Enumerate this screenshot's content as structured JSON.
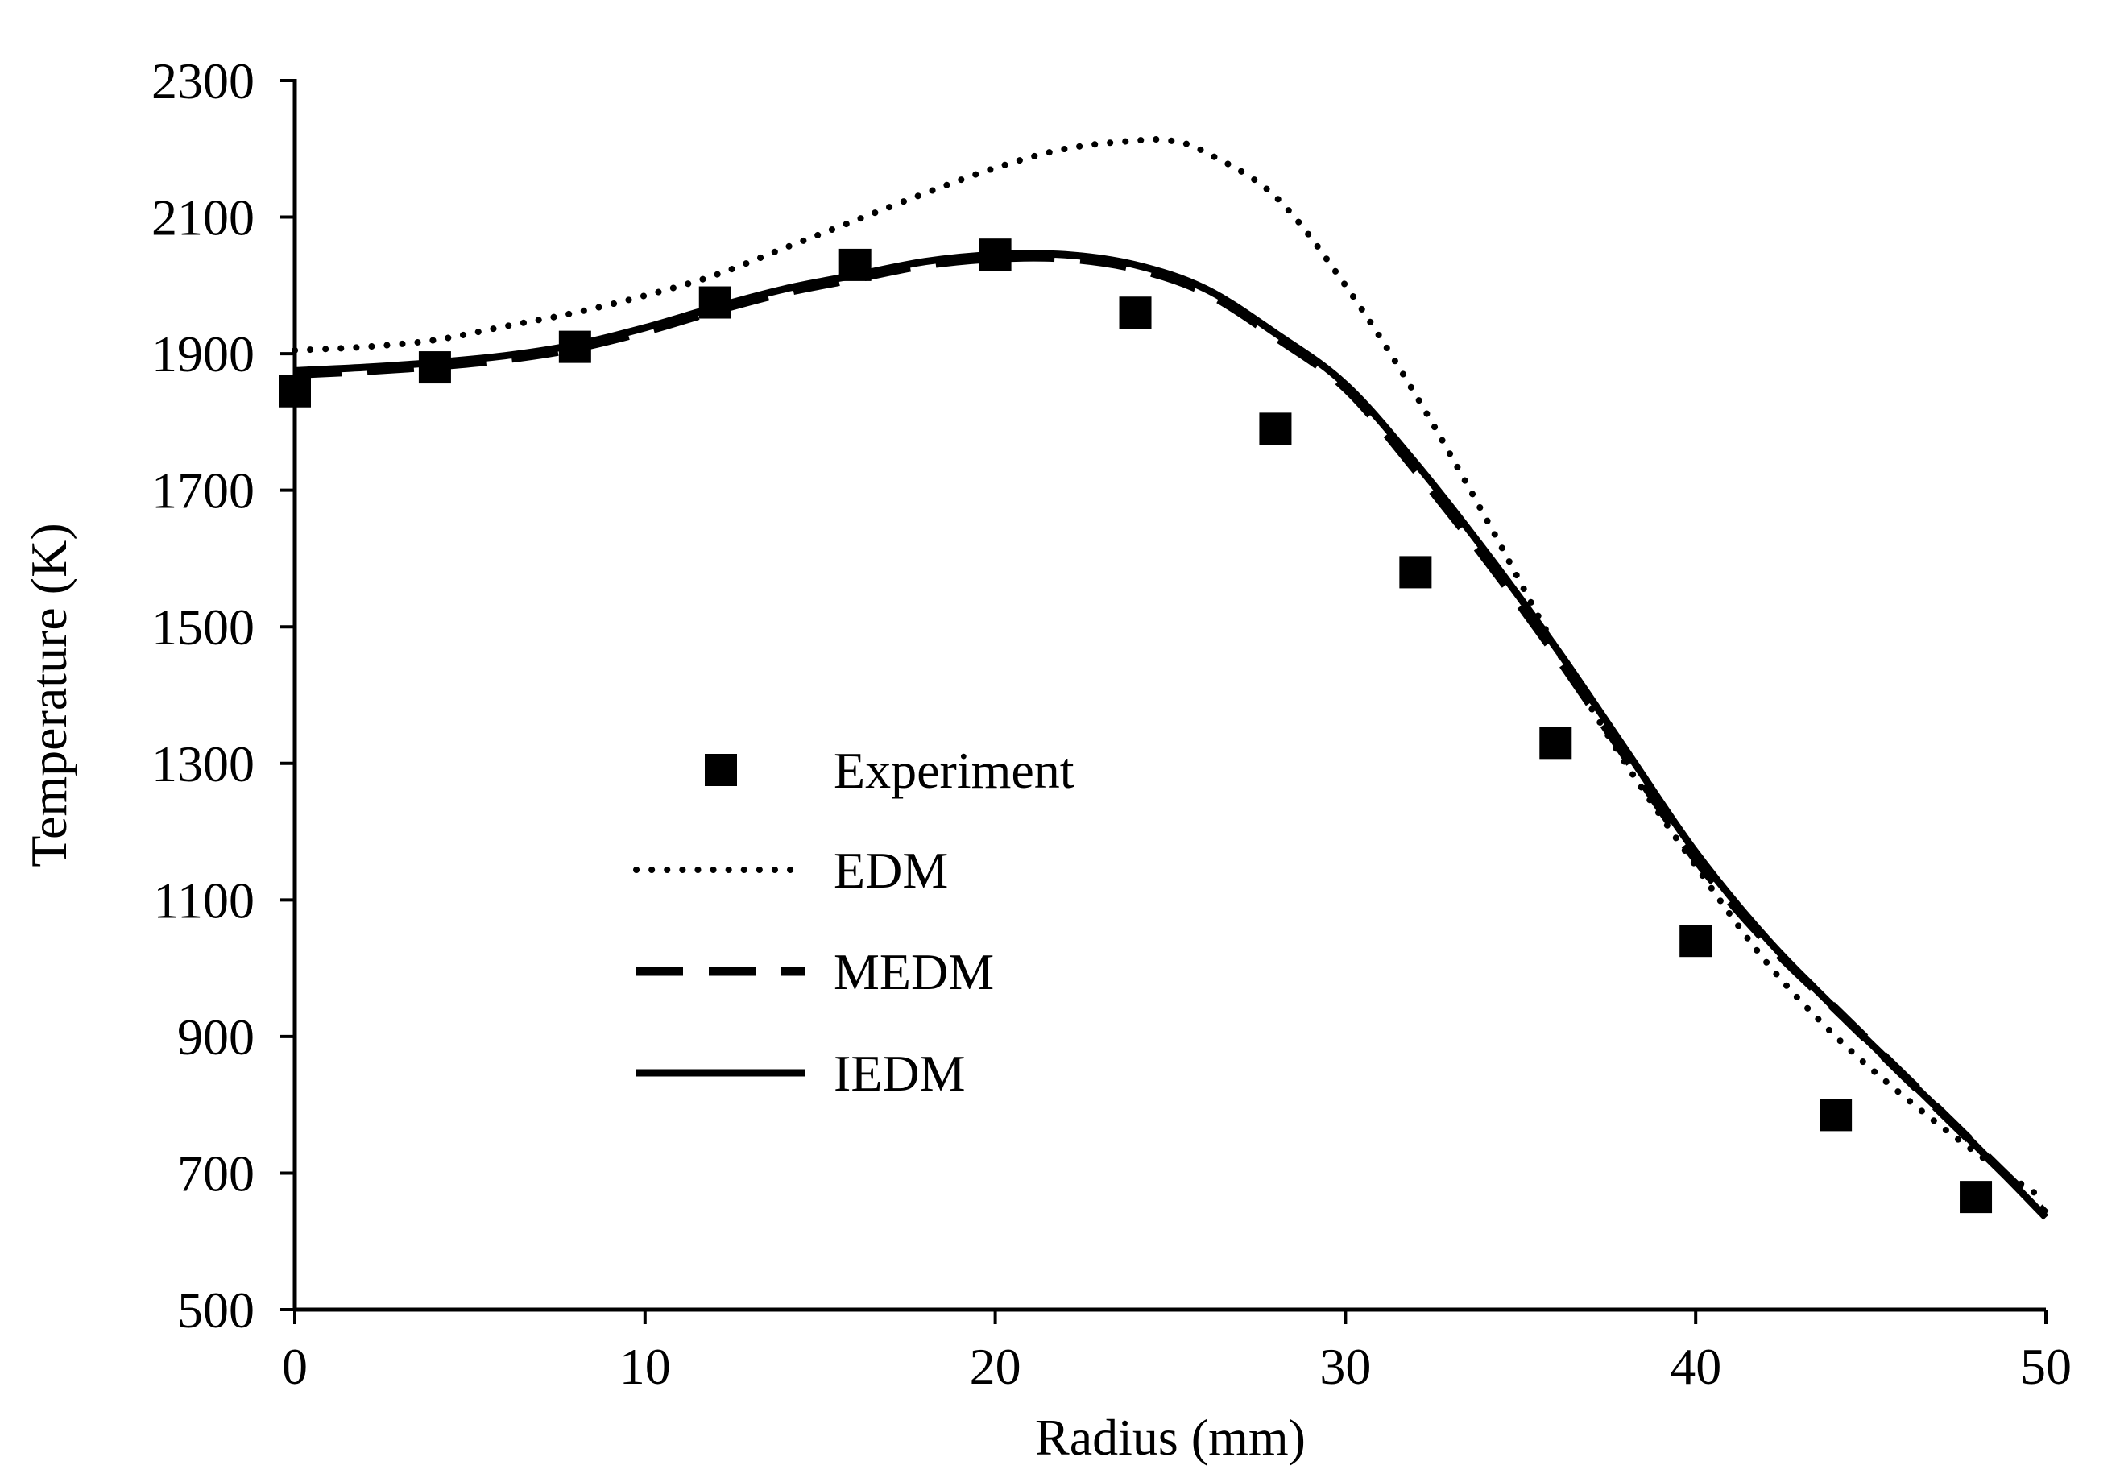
{
  "chart_data": {
    "type": "line",
    "title": "",
    "xlabel": "Radius (mm)",
    "ylabel": "Temperature (K)",
    "xlim": [
      0,
      50
    ],
    "ylim": [
      500,
      2300
    ],
    "xticks": [
      0,
      10,
      20,
      30,
      40,
      50
    ],
    "yticks": [
      500,
      700,
      900,
      1100,
      1300,
      1500,
      1700,
      1900,
      2100,
      2300
    ],
    "grid": false,
    "legend_position": "center-left",
    "colors": {
      "ink": "#000000",
      "background": "#ffffff"
    },
    "series": [
      {
        "name": "Experiment",
        "style": "square-markers",
        "x": [
          0,
          4,
          8,
          12,
          16,
          20,
          24,
          28,
          32,
          36,
          40,
          44,
          48
        ],
        "y": [
          1845,
          1880,
          1910,
          1975,
          2030,
          2045,
          1960,
          1790,
          1580,
          1330,
          1040,
          785,
          665
        ]
      },
      {
        "name": "EDM",
        "style": "dotted",
        "x": [
          0,
          2,
          4,
          6,
          8,
          10,
          12,
          14,
          16,
          18,
          20,
          22,
          24,
          25,
          26,
          28,
          30,
          32,
          34,
          36,
          38,
          40,
          42,
          44,
          46,
          48,
          50
        ],
        "y": [
          1905,
          1910,
          1920,
          1940,
          1960,
          1985,
          2015,
          2055,
          2095,
          2135,
          2172,
          2200,
          2212,
          2212,
          2195,
          2130,
          2000,
          1840,
          1660,
          1470,
          1300,
          1150,
          1010,
          900,
          810,
          730,
          660
        ]
      },
      {
        "name": "MEDM",
        "style": "dashed",
        "x": [
          0,
          2,
          4,
          6,
          8,
          10,
          12,
          14,
          16,
          18,
          20,
          22,
          24,
          26,
          28,
          30,
          32,
          34,
          36,
          38,
          40,
          42,
          44,
          46,
          48,
          50
        ],
        "y": [
          1870,
          1875,
          1882,
          1892,
          1908,
          1933,
          1963,
          1990,
          2010,
          2030,
          2040,
          2040,
          2025,
          1990,
          1925,
          1850,
          1730,
          1600,
          1460,
          1310,
          1160,
          1040,
          940,
          840,
          740,
          640
        ]
      },
      {
        "name": "IEDM",
        "style": "solid",
        "x": [
          0,
          2,
          4,
          6,
          8,
          10,
          12,
          14,
          16,
          18,
          20,
          22,
          24,
          26,
          28,
          30,
          32,
          34,
          36,
          38,
          40,
          42,
          44,
          46,
          48,
          50
        ],
        "y": [
          1875,
          1880,
          1887,
          1897,
          1913,
          1938,
          1968,
          1995,
          2015,
          2035,
          2045,
          2045,
          2030,
          1995,
          1930,
          1855,
          1740,
          1610,
          1470,
          1320,
          1170,
          1045,
          940,
          840,
          740,
          635
        ]
      }
    ]
  }
}
